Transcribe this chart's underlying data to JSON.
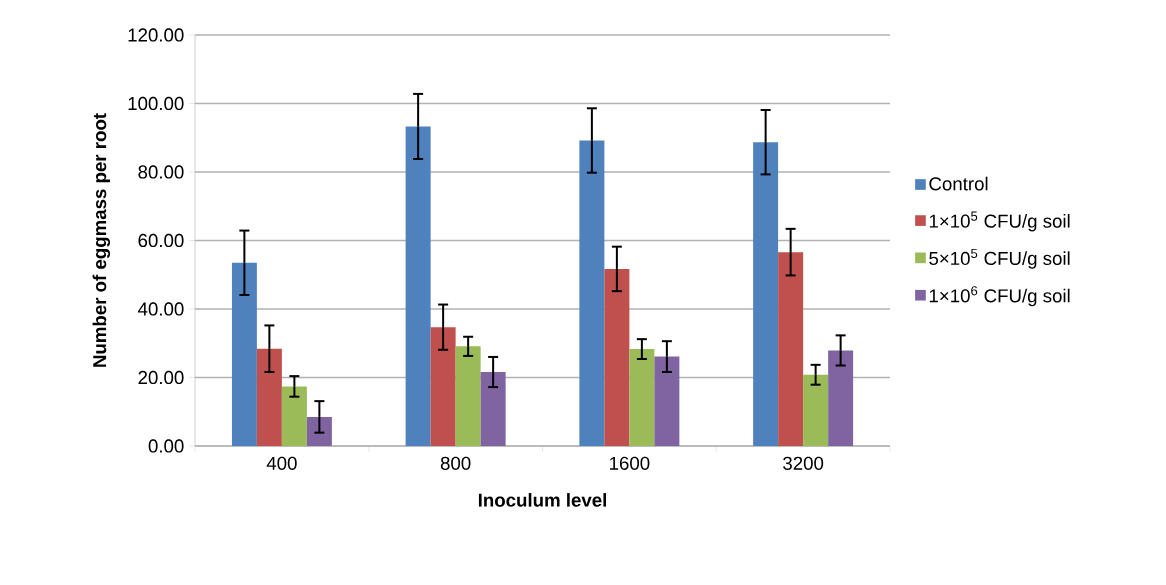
{
  "chart_data": {
    "type": "bar",
    "xlabel": "Inoculum level",
    "ylabel": "Number of eggmass per root",
    "categories": [
      "400",
      "800",
      "1600",
      "3200"
    ],
    "series": [
      {
        "name": "Control",
        "color": "#4f81bd",
        "values": [
          53.5,
          93.3,
          89.2,
          88.7
        ],
        "errors": [
          9.4,
          9.5,
          9.4,
          9.4
        ]
      },
      {
        "name": "1×10$^{5}$ CFU/g soil",
        "color": "#c0504d",
        "values": [
          28.4,
          34.7,
          51.7,
          56.6
        ],
        "errors": [
          6.8,
          6.6,
          6.5,
          6.8
        ]
      },
      {
        "name": "5×10$^{5}$ CFU/g soil",
        "color": "#9bbb59",
        "values": [
          17.4,
          29.1,
          28.3,
          20.8
        ],
        "errors": [
          3.0,
          2.8,
          2.9,
          2.9
        ]
      },
      {
        "name": "1×10$^{6}$ CFU/g soil",
        "color": "#8064a2",
        "values": [
          8.5,
          21.6,
          26.1,
          27.9
        ],
        "errors": [
          4.6,
          4.4,
          4.5,
          4.4
        ]
      }
    ],
    "ylim": [
      0,
      120
    ],
    "yticks": [
      {
        "value": 0,
        "label": "0.00"
      },
      {
        "value": 20,
        "label": "20.00"
      },
      {
        "value": 40,
        "label": "40.00"
      },
      {
        "value": 60,
        "label": "60.00"
      },
      {
        "value": 80,
        "label": "80.00"
      },
      {
        "value": 100,
        "label": "100.00"
      },
      {
        "value": 120,
        "label": "120.00"
      }
    ],
    "grid": "y",
    "legend": "right"
  }
}
